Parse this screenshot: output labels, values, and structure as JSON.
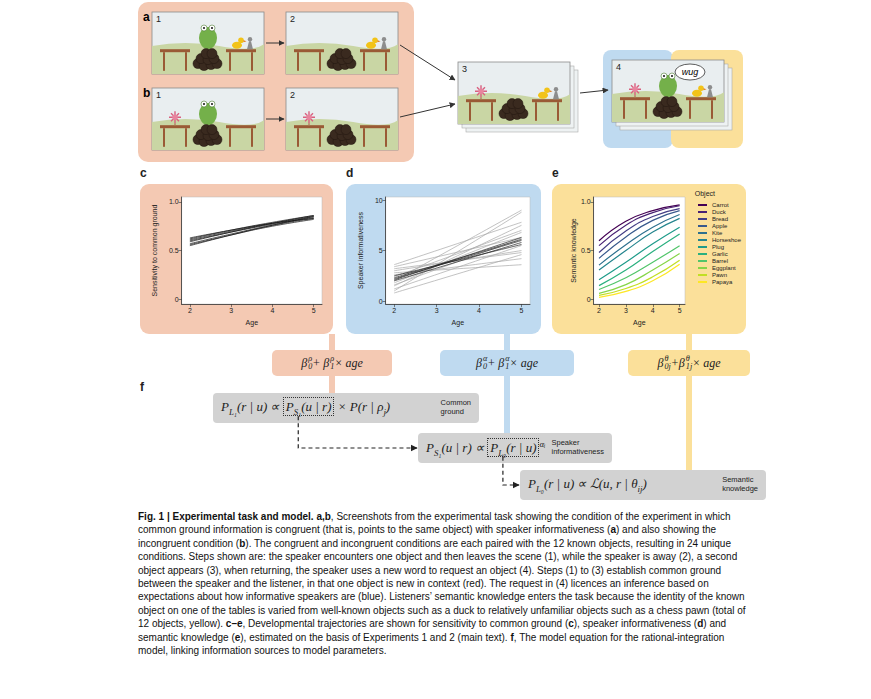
{
  "figure": {
    "screenshots": {
      "rows": [
        {
          "label": "a",
          "steps": [
            "1",
            "2"
          ]
        },
        {
          "label": "b",
          "steps": [
            "1",
            "2"
          ]
        }
      ],
      "merged_steps": [
        "3",
        "4"
      ],
      "speech": "wug"
    },
    "parameter_formulas": [
      [
        {
          "t": "β",
          "sub": "0",
          "sup": "ρ"
        },
        {
          "t": " + "
        },
        {
          "t": "β",
          "sub": "1",
          "sup": "ρ"
        },
        {
          "t": " × age"
        }
      ],
      [
        {
          "t": "β",
          "sub": "0",
          "sup": "α"
        },
        {
          "t": " + "
        },
        {
          "t": "β",
          "sub": "1",
          "sup": "α"
        },
        {
          "t": " × age"
        }
      ],
      [
        {
          "t": "β",
          "sub": "0j",
          "sup": "θ"
        },
        {
          "t": " +"
        },
        {
          "t": "β",
          "sub": "1j",
          "sup": "θ"
        },
        {
          "t": " × age"
        }
      ]
    ],
    "model_label": "f",
    "equations": [
      {
        "parts": [
          [
            {
              "t": "P",
              "sub": "L₁"
            },
            {
              "t": "(r | u) ∝ "
            }
          ],
          [
            {
              "t": "P",
              "sub": "S₁"
            },
            {
              "t": "(u | r)"
            }
          ],
          [
            {
              "t": " × P(r | "
            },
            {
              "t": "ρ",
              "sub": "j"
            },
            {
              "t": ")"
            }
          ]
        ],
        "label": [
          "Common",
          "ground"
        ]
      },
      {
        "parts": [
          [
            {
              "t": "P",
              "sub": "S₁"
            },
            {
              "t": "(u | r) ∝ "
            }
          ],
          [
            {
              "t": "P",
              "sub": "L₀"
            },
            {
              "t": "(r | u)"
            }
          ],
          [
            {
              "sup": "αᵢ"
            }
          ]
        ],
        "label": [
          "Speaker",
          "informativeness"
        ]
      },
      {
        "parts": [
          [
            {
              "t": "P",
              "sub": "L₀"
            },
            {
              "t": "(r | u) ∝ ℒ(u, r | "
            },
            {
              "t": "θ",
              "sub": "ij"
            },
            {
              "t": ")"
            }
          ]
        ],
        "label": [
          "Semantic",
          "knowledge"
        ]
      }
    ],
    "caption": [
      {
        "text": "Fig. 1 | Experimental task and model. a,b",
        "bold": true
      },
      {
        "text": ", Screenshots from the experimental task showing the condition of the experiment in which common ground information is congruent (that is, points to the same object) with speaker informativeness ("
      },
      {
        "text": "a",
        "bold": true
      },
      {
        "text": ") and also showing the incongruent condition ("
      },
      {
        "text": "b",
        "bold": true
      },
      {
        "text": "). The congruent and incongruent conditions are each paired with the 12 known objects, resulting in 24 unique conditions. Steps shown are: the speaker encounters one object and then leaves the scene (1), while the speaker is away (2), a second object appears (3), when returning, the speaker uses a new word to request an object (4). Steps (1) to (3) establish common ground between the speaker and the listener, in that one object is new in context (red). The request in (4) licences an inference based on expectations about how informative speakers are (blue). Listeners’ semantic knowledge enters the task because the identity of the known object on one of the tables is varied from well-known objects such as a duck to relatively unfamiliar objects such as a chess pawn (total of 12 objects, yellow). "
      },
      {
        "text": "c–e",
        "bold": true
      },
      {
        "text": ", Developmental trajectories are shown for sensitivity to common ground ("
      },
      {
        "text": "c",
        "bold": true
      },
      {
        "text": "), speaker informativeness ("
      },
      {
        "text": "d",
        "bold": true
      },
      {
        "text": ") and semantic knowledge ("
      },
      {
        "text": "e",
        "bold": true
      },
      {
        "text": "), estimated on the basis of Experiments 1 and 2 (main text). "
      },
      {
        "text": "f",
        "bold": true
      },
      {
        "text": ", The model equation for the rational-integration model, linking information sources to model parameters."
      }
    ]
  },
  "chart_data": [
    {
      "type": "line",
      "label": "c",
      "xlabel": "Age",
      "ylabel": "Sensitivity to common ground",
      "x": [
        2,
        3,
        4,
        5
      ],
      "xlim": [
        1.8,
        5.2
      ],
      "xticks": [
        2,
        3,
        4,
        5
      ],
      "ylim": [
        -0.05,
        1.05
      ],
      "yticks": [
        0,
        0.5,
        {
          "value": 1,
          "label": "1.0"
        }
      ],
      "grid": false,
      "series": [
        {
          "color": "#111111",
          "values": [
            0.6,
            0.69,
            0.77,
            0.84
          ]
        },
        {
          "color": "#111111",
          "values": [
            0.57,
            0.67,
            0.76,
            0.83
          ]
        },
        {
          "color": "#111111",
          "values": [
            0.62,
            0.71,
            0.79,
            0.86
          ]
        },
        {
          "color": "#111111",
          "values": [
            0.55,
            0.66,
            0.76,
            0.85
          ]
        },
        {
          "color": "#111111",
          "values": [
            0.63,
            0.71,
            0.78,
            0.83
          ]
        },
        {
          "color": "#111111",
          "values": [
            0.59,
            0.69,
            0.78,
            0.86
          ]
        },
        {
          "color": "#111111",
          "values": [
            0.61,
            0.7,
            0.78,
            0.85
          ]
        },
        {
          "color": "#111111",
          "values": [
            0.56,
            0.66,
            0.75,
            0.82
          ]
        }
      ]
    },
    {
      "type": "line",
      "label": "d",
      "xlabel": "Age",
      "ylabel": "Speaker informativeness",
      "x": [
        2,
        5
      ],
      "xlim": [
        1.8,
        5.2
      ],
      "xticks": [
        2,
        3,
        4,
        5
      ],
      "ylim": [
        -0.3,
        10.3
      ],
      "yticks": [
        0,
        5,
        10
      ],
      "grid": false,
      "series": [
        {
          "color": "#a8a8a8",
          "values": [
            1.0,
            8.8
          ]
        },
        {
          "color": "#a8a8a8",
          "values": [
            1.5,
            7.5
          ]
        },
        {
          "color": "#a8a8a8",
          "values": [
            2.0,
            9.0
          ]
        },
        {
          "color": "#a8a8a8",
          "values": [
            3.0,
            5.0
          ]
        },
        {
          "color": "#a8a8a8",
          "values": [
            2.6,
            4.2
          ]
        },
        {
          "color": "#a8a8a8",
          "values": [
            1.8,
            6.8
          ]
        },
        {
          "color": "#a8a8a8",
          "values": [
            3.4,
            6.3
          ]
        },
        {
          "color": "#a8a8a8",
          "values": [
            2.8,
            3.6
          ]
        },
        {
          "color": "#a8a8a8",
          "values": [
            1.2,
            5.5
          ]
        },
        {
          "color": "#a8a8a8",
          "values": [
            2.4,
            7.0
          ]
        },
        {
          "color": "#a8a8a8",
          "values": [
            3.2,
            4.8
          ]
        },
        {
          "color": "#a8a8a8",
          "values": [
            1.6,
            6.2
          ]
        },
        {
          "color": "#a8a8a8",
          "values": [
            3.6,
            7.8
          ]
        },
        {
          "color": "#a8a8a8",
          "values": [
            0.8,
            4.6
          ]
        },
        {
          "color": "#222222",
          "values": [
            2.0,
            5.8
          ]
        },
        {
          "color": "#222222",
          "values": [
            2.3,
            6.1
          ]
        },
        {
          "color": "#222222",
          "values": [
            2.5,
            5.6
          ]
        },
        {
          "color": "#222222",
          "values": [
            2.1,
            6.3
          ]
        },
        {
          "color": "#222222",
          "values": [
            2.2,
            6.0
          ]
        }
      ]
    },
    {
      "type": "line",
      "label": "e",
      "xlabel": "Age",
      "ylabel": "Semantic knowledge",
      "legend_title": "Object",
      "legend": "right",
      "x": [
        2,
        3,
        4,
        5
      ],
      "xlim": [
        1.8,
        5.2
      ],
      "xticks": [
        2,
        3,
        4,
        5
      ],
      "ylim": [
        -0.05,
        1.05
      ],
      "yticks": [
        0,
        0.5,
        {
          "value": 1,
          "label": "1.0"
        }
      ],
      "grid": false,
      "series": [
        {
          "name": "Carrot",
          "color": "#440154",
          "values": [
            0.6,
            0.8,
            0.91,
            0.97
          ]
        },
        {
          "name": "Duck",
          "color": "#482173",
          "values": [
            0.55,
            0.76,
            0.89,
            0.96
          ]
        },
        {
          "name": "Bread",
          "color": "#433e85",
          "values": [
            0.48,
            0.7,
            0.85,
            0.93
          ]
        },
        {
          "name": "Apple",
          "color": "#38598c",
          "values": [
            0.42,
            0.64,
            0.81,
            0.91
          ]
        },
        {
          "name": "Kite",
          "color": "#2d708e",
          "values": [
            0.35,
            0.56,
            0.74,
            0.87
          ]
        },
        {
          "name": "Horseshoe",
          "color": "#25858e",
          "values": [
            0.3,
            0.5,
            0.69,
            0.83
          ]
        },
        {
          "name": "Plug",
          "color": "#1e9b8a",
          "values": [
            0.2,
            0.38,
            0.57,
            0.74
          ]
        },
        {
          "name": "Garlic",
          "color": "#2ab07f",
          "values": [
            0.14,
            0.3,
            0.49,
            0.67
          ]
        },
        {
          "name": "Barrel",
          "color": "#51c56a",
          "values": [
            0.1,
            0.22,
            0.38,
            0.55
          ]
        },
        {
          "name": "Eggplant",
          "color": "#86d549",
          "values": [
            0.06,
            0.15,
            0.3,
            0.47
          ]
        },
        {
          "name": "Pawn",
          "color": "#c2df23",
          "values": [
            0.04,
            0.11,
            0.23,
            0.4
          ]
        },
        {
          "name": "Papaya",
          "color": "#fde725",
          "values": [
            0.02,
            0.08,
            0.19,
            0.36
          ]
        }
      ]
    }
  ]
}
